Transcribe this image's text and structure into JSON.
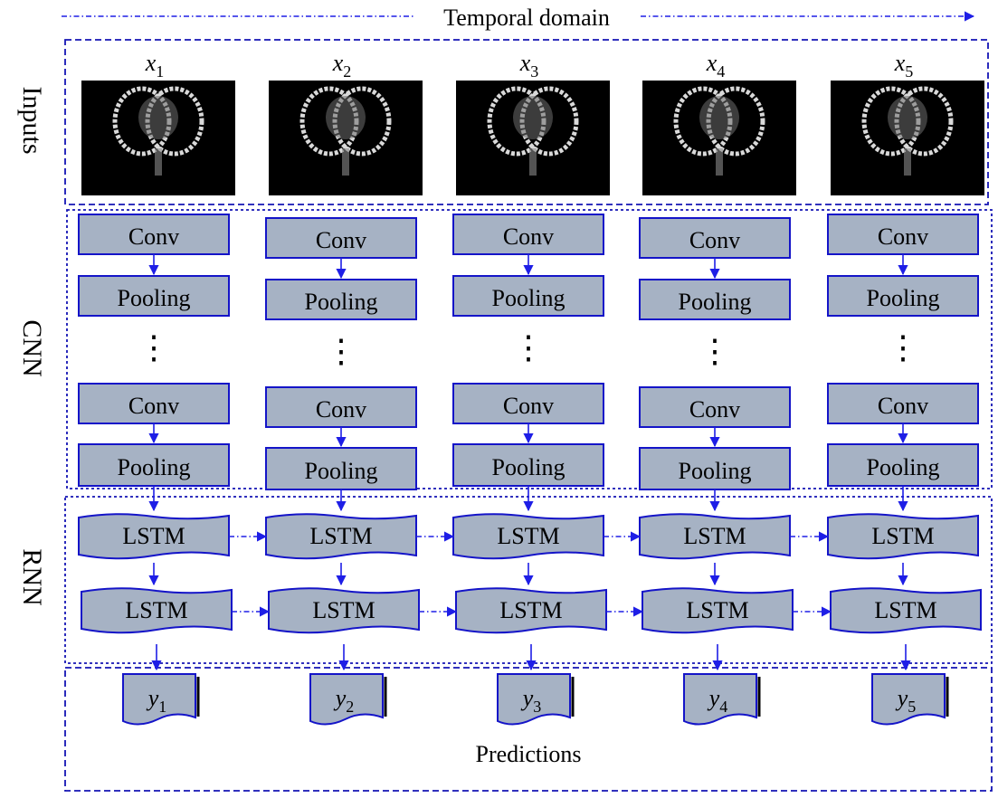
{
  "header": {
    "label": "Temporal domain"
  },
  "sections": {
    "inputs": "Inputs",
    "cnn": "CNN",
    "rnn": "RNN",
    "predictions": "Predictions"
  },
  "columns": [
    {
      "input": "x",
      "sub": "1",
      "output": "y",
      "out_sub": "1"
    },
    {
      "input": "x",
      "sub": "2",
      "output": "y",
      "out_sub": "2"
    },
    {
      "input": "x",
      "sub": "3",
      "output": "y",
      "out_sub": "3"
    },
    {
      "input": "x",
      "sub": "4",
      "output": "y",
      "out_sub": "4"
    },
    {
      "input": "x",
      "sub": "5",
      "output": "y",
      "out_sub": "5"
    }
  ],
  "layers": {
    "conv": "Conv",
    "pooling": "Pooling",
    "ellipsis": "⋮",
    "lstm": "LSTM"
  },
  "colors": {
    "box_fill": "#a6b2c4",
    "box_stroke": "#1414c8",
    "arrow": "#1e1ee6",
    "dash": "#1414b4"
  }
}
